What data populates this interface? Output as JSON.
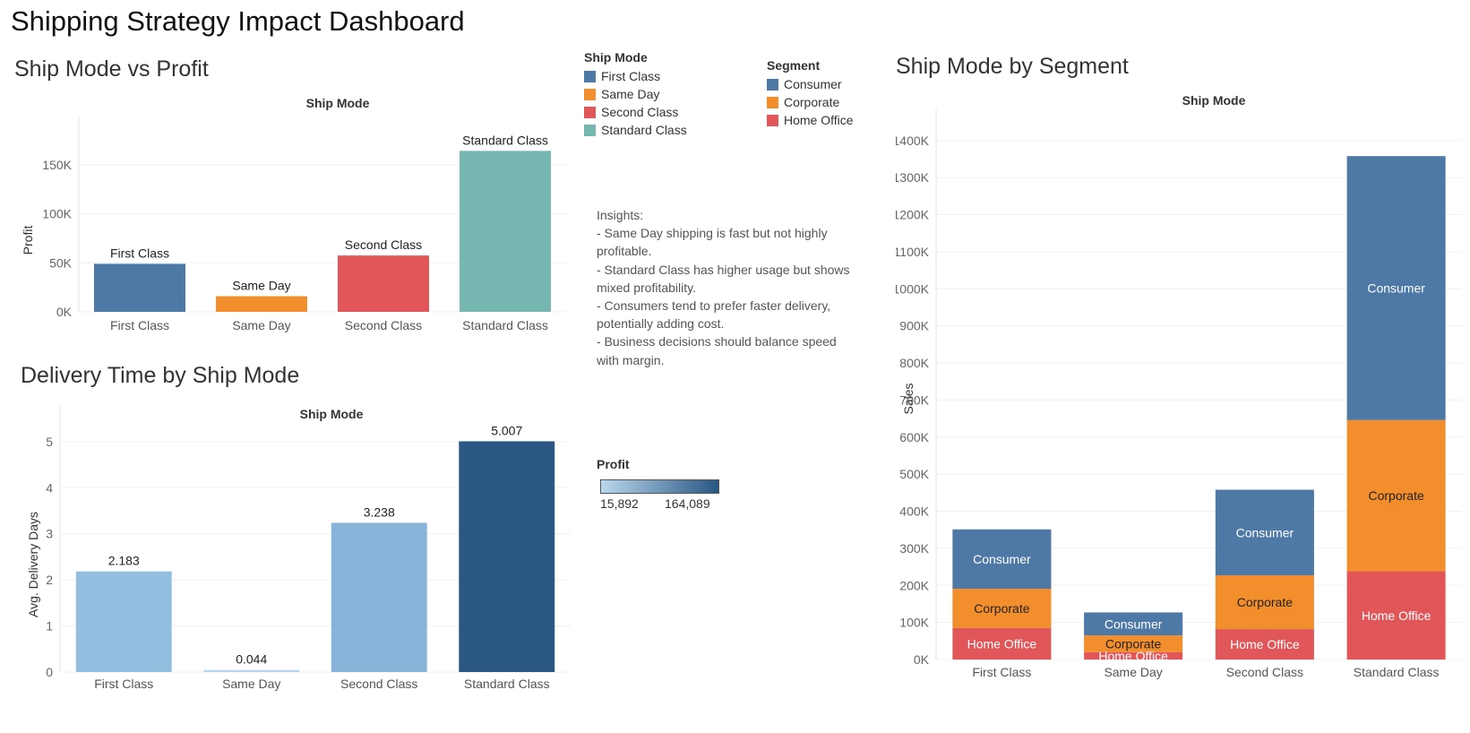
{
  "dashboard_title": "Shipping Strategy Impact Dashboard",
  "ship_mode_legend": {
    "title": "Ship Mode",
    "items": [
      {
        "label": "First Class",
        "color": "#4e79a7"
      },
      {
        "label": "Same Day",
        "color": "#f28e2b"
      },
      {
        "label": "Second Class",
        "color": "#e15759"
      },
      {
        "label": "Standard Class",
        "color": "#76b7b2"
      }
    ]
  },
  "segment_legend": {
    "title": "Segment",
    "items": [
      {
        "label": "Consumer",
        "color": "#4e79a7"
      },
      {
        "label": "Corporate",
        "color": "#f28e2b"
      },
      {
        "label": "Home Office",
        "color": "#e15759"
      }
    ]
  },
  "insights": {
    "lines": [
      " Insights:",
      "- Same Day shipping is fast but not highly",
      "profitable.",
      "- Standard Class has higher usage but shows",
      "mixed profitability.",
      "- Consumers tend to prefer faster delivery,",
      "potentially adding cost.",
      "- Business decisions should balance speed",
      "with margin."
    ]
  },
  "profit_color_legend": {
    "title": "Profit",
    "min_label": "15,892",
    "max_label": "164,089",
    "min_color": "#b9d6ec",
    "max_color": "#2a5783"
  },
  "chart_data": [
    {
      "id": "profit",
      "type": "bar",
      "title": "Ship Mode vs Profit",
      "column_header": "Ship Mode",
      "ylabel": "Profit",
      "categories": [
        "First Class",
        "Same Day",
        "Second Class",
        "Standard Class"
      ],
      "values": [
        48970,
        15892,
        57446,
        164089
      ],
      "bar_labels": [
        "First Class",
        "Same Day",
        "Second Class",
        "Standard Class"
      ],
      "colors": [
        "#4e79a7",
        "#f28e2b",
        "#e15759",
        "#76b7b2"
      ],
      "yticks": [
        0,
        50000,
        100000,
        150000
      ],
      "ytick_labels": [
        "0K",
        "50K",
        "100K",
        "150K"
      ],
      "ylim": [
        0,
        190000
      ],
      "grid": true
    },
    {
      "id": "delivery",
      "type": "bar",
      "title": "Delivery Time by Ship Mode",
      "column_header": "Ship Mode",
      "ylabel": "Avg. Delivery Days",
      "categories": [
        "First Class",
        "Same Day",
        "Second Class",
        "Standard Class"
      ],
      "values": [
        2.183,
        0.044,
        3.238,
        5.007
      ],
      "value_labels": [
        "2.183",
        "0.044",
        "3.238",
        "5.007"
      ],
      "colors": [
        "#92bedf",
        "#b9d6ec",
        "#87b3d8",
        "#2a5783"
      ],
      "color_encoding": "Profit",
      "yticks": [
        0,
        1,
        2,
        3,
        4,
        5
      ],
      "ytick_labels": [
        "0",
        "1",
        "2",
        "3",
        "4",
        "5"
      ],
      "ylim": [
        0,
        5.6
      ],
      "grid": true
    },
    {
      "id": "segment",
      "type": "bar",
      "stacked": true,
      "title": "Ship Mode by Segment",
      "column_header": "Ship Mode",
      "ylabel": "Sales",
      "categories": [
        "First Class",
        "Same Day",
        "Second Class",
        "Standard Class"
      ],
      "series": [
        {
          "name": "Home Office",
          "color": "#e15759",
          "values": [
            85000,
            20000,
            82000,
            238000
          ],
          "label_color": "#ffffff"
        },
        {
          "name": "Corporate",
          "color": "#f28e2b",
          "values": [
            106000,
            45000,
            145000,
            408000
          ],
          "label_color": "#222222"
        },
        {
          "name": "Consumer",
          "color": "#4e79a7",
          "values": [
            160000,
            62000,
            231000,
            712000
          ],
          "label_color": "#ffffff"
        }
      ],
      "yticks": [
        0,
        100000,
        200000,
        300000,
        400000,
        500000,
        600000,
        700000,
        800000,
        900000,
        1000000,
        1100000,
        1200000,
        1300000,
        1400000
      ],
      "ytick_labels": [
        "0K",
        "100K",
        "200K",
        "300K",
        "400K",
        "500K",
        "600K",
        "700K",
        "800K",
        "900K",
        "1000K",
        "1100K",
        "1200K",
        "1300K",
        "1400K"
      ],
      "ylim": [
        0,
        1460000
      ],
      "grid": true
    }
  ]
}
